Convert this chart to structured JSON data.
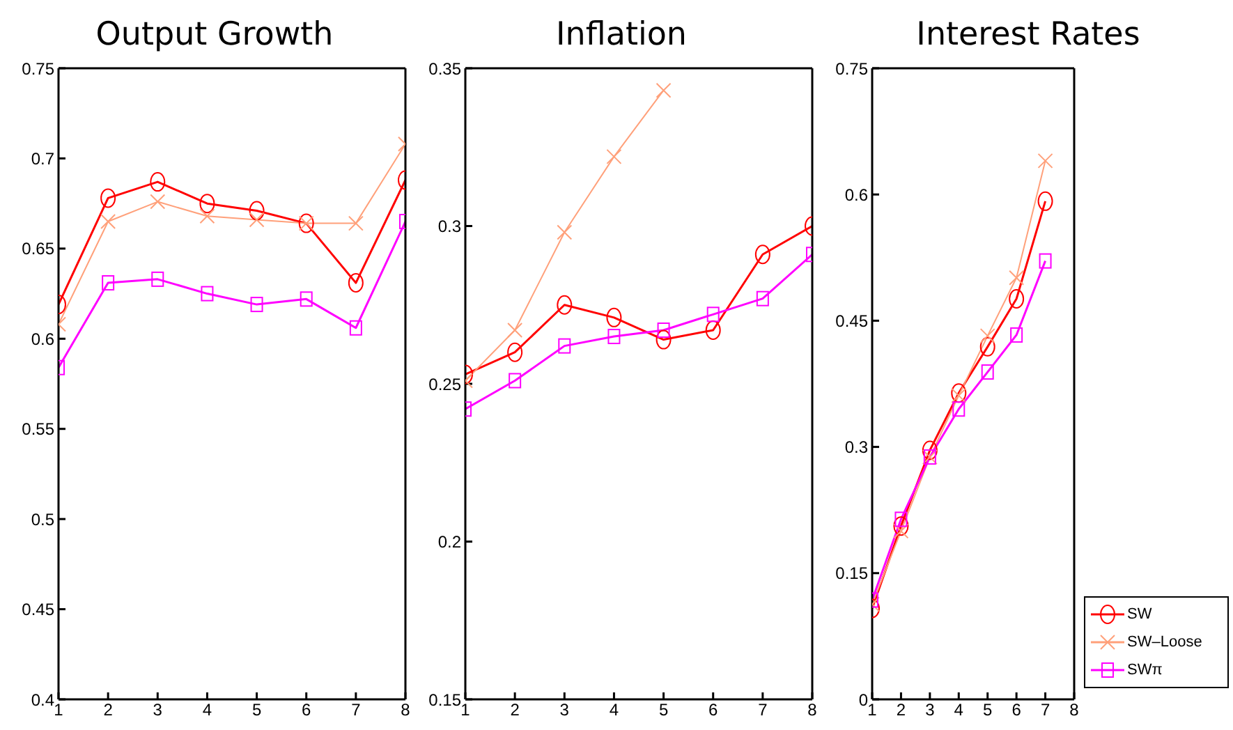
{
  "chart_data": [
    {
      "type": "line",
      "title": "Output Growth",
      "x": [
        1,
        2,
        3,
        4,
        5,
        6,
        7,
        8
      ],
      "xlim": [
        1,
        8
      ],
      "xticks": [
        1,
        2,
        3,
        4,
        5,
        6,
        7,
        8
      ],
      "ylim": [
        0.4,
        0.75
      ],
      "yticks": [
        0.4,
        0.45,
        0.5,
        0.55,
        0.6,
        0.65,
        0.7,
        0.75
      ],
      "grid": false,
      "legend": false,
      "series": [
        {
          "color": "#ff0000",
          "marker": "circle",
          "values": [
            0.619,
            0.678,
            0.687,
            0.675,
            0.671,
            0.664,
            0.631,
            0.688
          ]
        },
        {
          "color": "#ffa07a",
          "marker": "cross",
          "values": [
            0.608,
            0.665,
            0.676,
            0.668,
            0.666,
            0.664,
            0.664,
            0.708
          ]
        },
        {
          "color": "#ff00ff",
          "marker": "square",
          "values": [
            0.584,
            0.631,
            0.633,
            0.625,
            0.619,
            0.622,
            0.606,
            0.665
          ]
        }
      ]
    },
    {
      "type": "line",
      "title": "Inflation",
      "x": [
        1,
        2,
        3,
        4,
        5,
        6,
        7,
        8
      ],
      "xlim": [
        1,
        8
      ],
      "xticks": [
        1,
        2,
        3,
        4,
        5,
        6,
        7,
        8
      ],
      "ylim": [
        0.15,
        0.35
      ],
      "yticks": [
        0.15,
        0.2,
        0.25,
        0.3,
        0.35
      ],
      "grid": false,
      "legend": false,
      "series": [
        {
          "color": "#ff0000",
          "marker": "circle",
          "values": [
            0.253,
            0.26,
            0.275,
            0.271,
            0.264,
            0.267,
            0.291,
            0.3
          ]
        },
        {
          "color": "#ffa07a",
          "marker": "cross",
          "values": [
            0.251,
            0.267,
            0.298,
            0.322,
            0.343,
            null,
            null,
            null
          ]
        },
        {
          "color": "#ff00ff",
          "marker": "square",
          "values": [
            0.242,
            0.251,
            0.262,
            0.265,
            0.267,
            0.272,
            0.277,
            0.291
          ]
        }
      ]
    },
    {
      "type": "line",
      "title": "Interest Rates",
      "x": [
        1,
        2,
        3,
        4,
        5,
        6,
        7
      ],
      "xlim": [
        1,
        8
      ],
      "xticks": [
        1,
        2,
        3,
        4,
        5,
        6,
        7,
        8
      ],
      "ylim": [
        0,
        0.75
      ],
      "yticks": [
        0,
        0.15,
        0.3,
        0.45,
        0.6,
        0.75
      ],
      "grid": false,
      "legend": "bottom right",
      "series": [
        {
          "name": "SW",
          "color": "#ff0000",
          "marker": "circle",
          "values": [
            0.108,
            0.206,
            0.296,
            0.364,
            0.419,
            0.476,
            0.592
          ]
        },
        {
          "name": "SW‒Loose",
          "color": "#ffa07a",
          "marker": "cross",
          "values": [
            0.113,
            0.2,
            0.288,
            0.361,
            0.432,
            0.501,
            0.64
          ]
        },
        {
          "name": "SWπ",
          "color": "#ff00ff",
          "marker": "square",
          "values": [
            0.118,
            0.214,
            0.288,
            0.345,
            0.389,
            0.433,
            0.521
          ]
        }
      ]
    }
  ]
}
